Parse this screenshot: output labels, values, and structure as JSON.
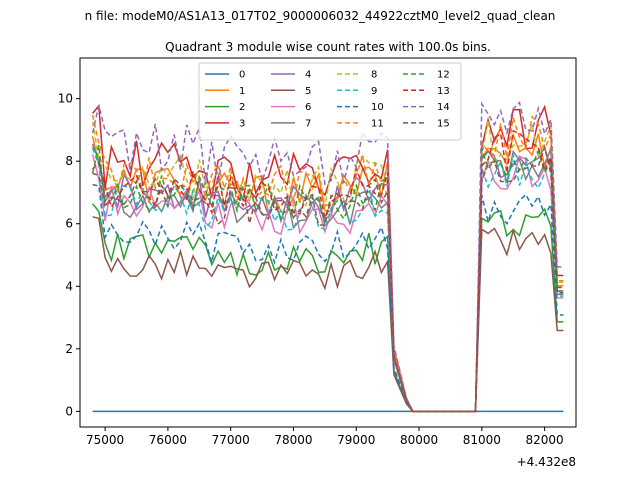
{
  "suptitle": "n file: modeM0/AS1A13_017T02_9000006032_44922cztM0_level2_quad_clean",
  "chart_data": {
    "type": "line",
    "title": "Quadrant 3 module wise count rates with 100.0s bins.",
    "x_offset_label": "+4.432e8",
    "xlim": [
      74600,
      82500
    ],
    "ylim": [
      -0.5,
      11.3
    ],
    "xticks": [
      75000,
      76000,
      77000,
      78000,
      79000,
      80000,
      81000,
      82000
    ],
    "xtick_labels": [
      "75000",
      "76000",
      "77000",
      "78000",
      "79000",
      "80000",
      "81000",
      "82000"
    ],
    "yticks": [
      0,
      2,
      4,
      6,
      8,
      10
    ],
    "ytick_labels": [
      "0",
      "2",
      "4",
      "6",
      "8",
      "10"
    ],
    "legend_position": "upper center",
    "legend_ncol": 4,
    "gap": {
      "start": 79500,
      "end": 80950,
      "drop_end": 79850
    },
    "series": [
      {
        "name": "0",
        "color": "#1f77b4",
        "dash": "solid",
        "level": 0,
        "amp": 0
      },
      {
        "name": "1",
        "color": "#ff7f0e",
        "dash": "solid",
        "level": 7.3,
        "amp": 0.7
      },
      {
        "name": "2",
        "color": "#2ca02c",
        "dash": "solid",
        "level": 5.2,
        "amp": 0.5
      },
      {
        "name": "3",
        "color": "#d62728",
        "dash": "solid",
        "level": 7.9,
        "amp": 0.8
      },
      {
        "name": "4",
        "color": "#9467bd",
        "dash": "solid",
        "level": 7.0,
        "amp": 0.6
      },
      {
        "name": "5",
        "color": "#8c564b",
        "dash": "solid",
        "level": 4.7,
        "amp": 0.5
      },
      {
        "name": "6",
        "color": "#e377c2",
        "dash": "solid",
        "level": 6.6,
        "amp": 0.6
      },
      {
        "name": "7",
        "color": "#7f7f7f",
        "dash": "solid",
        "level": 6.8,
        "amp": 0.6
      },
      {
        "name": "8",
        "color": "#bcbd22",
        "dash": "dashed",
        "level": 7.5,
        "amp": 0.7
      },
      {
        "name": "9",
        "color": "#17becf",
        "dash": "dashed",
        "level": 6.7,
        "amp": 0.6
      },
      {
        "name": "10",
        "color": "#1f77b4",
        "dash": "dashed",
        "level": 5.6,
        "amp": 0.5
      },
      {
        "name": "11",
        "color": "#ff7f0e",
        "dash": "dashed",
        "level": 7.6,
        "amp": 0.7
      },
      {
        "name": "12",
        "color": "#2ca02c",
        "dash": "dashed",
        "level": 7.0,
        "amp": 0.6
      },
      {
        "name": "13",
        "color": "#d62728",
        "dash": "dashed",
        "level": 7.2,
        "amp": 0.7
      },
      {
        "name": "14",
        "color": "#9467bd",
        "dash": "dashed",
        "level": 8.4,
        "amp": 0.8
      },
      {
        "name": "15",
        "color": "#8c564b",
        "dash": "dashed",
        "level": 6.9,
        "amp": 0.6
      }
    ]
  }
}
